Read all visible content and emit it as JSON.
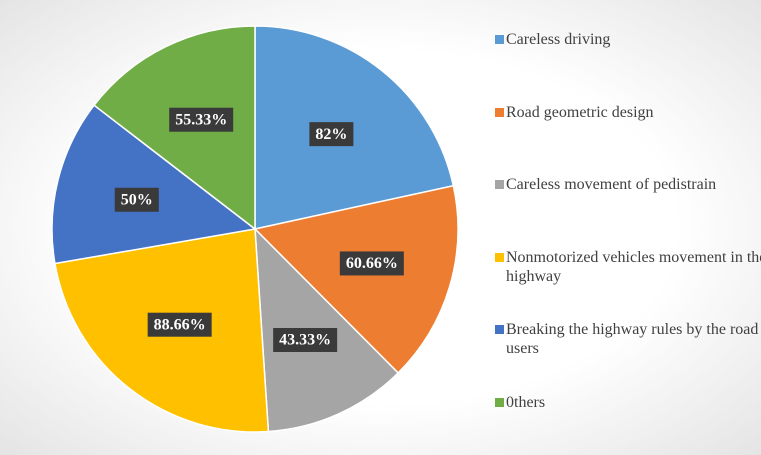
{
  "chart_data": {
    "type": "pie",
    "categories": [
      "Careless driving",
      "Road geometric design",
      "Careless movement of pedistrain",
      "Nonmotorized vehicles movement in the highway",
      "Breaking the highway rules by the road users",
      "0thers"
    ],
    "values": [
      82,
      60.66,
      43.33,
      88.66,
      50,
      55.33
    ],
    "value_labels": [
      "82%",
      "60.66%",
      "43.33%",
      "88.66%",
      "50%",
      "55.33%"
    ],
    "colors": [
      "#5b9bd5",
      "#ed7d31",
      "#a5a5a5",
      "#ffc000",
      "#4472c4",
      "#70ad47"
    ],
    "legend": "right"
  }
}
